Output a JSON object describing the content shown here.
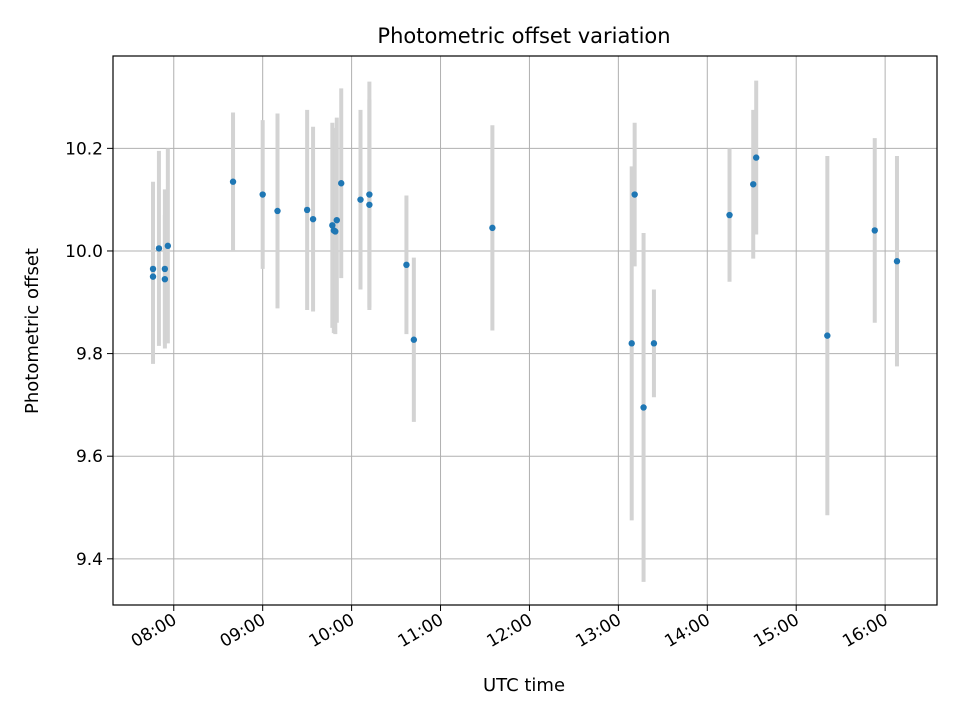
{
  "chart_data": {
    "type": "scatter",
    "title": "Photometric offset variation",
    "xlabel": "UTC time",
    "ylabel": "Photometric offset",
    "x_ticks": [
      "08:00",
      "09:00",
      "10:00",
      "11:00",
      "12:00",
      "13:00",
      "14:00",
      "15:00",
      "16:00"
    ],
    "y_ticks": [
      "9.4",
      "9.6",
      "9.8",
      "10.0",
      "10.2"
    ],
    "grid": true,
    "colors": {
      "point": "#1f77b4",
      "errorbar": "#d3d3d3",
      "grid": "#b0b0b0",
      "axis": "#000000"
    },
    "x_range": [
      "07:19",
      "16:35"
    ],
    "ylim": [
      9.31,
      10.38
    ],
    "points": [
      {
        "t": "07:46",
        "y": 9.95,
        "err": 0.17
      },
      {
        "t": "07:46",
        "y": 9.965,
        "err": 0.17
      },
      {
        "t": "07:50",
        "y": 10.005,
        "err": 0.19
      },
      {
        "t": "07:54",
        "y": 9.965,
        "err": 0.155
      },
      {
        "t": "07:54",
        "y": 9.945,
        "err": 0.125
      },
      {
        "t": "07:56",
        "y": 10.01,
        "err": 0.19
      },
      {
        "t": "08:40",
        "y": 10.135,
        "err": 0.135
      },
      {
        "t": "09:00",
        "y": 10.11,
        "err": 0.145
      },
      {
        "t": "09:10",
        "y": 10.078,
        "err": 0.19
      },
      {
        "t": "09:30",
        "y": 10.08,
        "err": 0.195
      },
      {
        "t": "09:34",
        "y": 10.062,
        "err": 0.18
      },
      {
        "t": "09:47",
        "y": 10.05,
        "err": 0.2
      },
      {
        "t": "09:48",
        "y": 10.04,
        "err": 0.2
      },
      {
        "t": "09:49",
        "y": 10.038,
        "err": 0.2
      },
      {
        "t": "09:50",
        "y": 10.06,
        "err": 0.2
      },
      {
        "t": "09:53",
        "y": 10.132,
        "err": 0.185
      },
      {
        "t": "10:06",
        "y": 10.1,
        "err": 0.175
      },
      {
        "t": "10:12",
        "y": 10.11,
        "err": 0.22
      },
      {
        "t": "10:12",
        "y": 10.09,
        "err": 0.205
      },
      {
        "t": "10:37",
        "y": 9.973,
        "err": 0.135
      },
      {
        "t": "10:42",
        "y": 9.827,
        "err": 0.16
      },
      {
        "t": "11:35",
        "y": 10.045,
        "err": 0.2
      },
      {
        "t": "13:09",
        "y": 9.82,
        "err": 0.345
      },
      {
        "t": "13:11",
        "y": 10.11,
        "err": 0.14
      },
      {
        "t": "13:17",
        "y": 9.695,
        "err": 0.34
      },
      {
        "t": "13:24",
        "y": 9.82,
        "err": 0.105
      },
      {
        "t": "14:15",
        "y": 10.07,
        "err": 0.13
      },
      {
        "t": "14:31",
        "y": 10.13,
        "err": 0.145
      },
      {
        "t": "14:33",
        "y": 10.182,
        "err": 0.15
      },
      {
        "t": "15:21",
        "y": 9.835,
        "err": 0.35
      },
      {
        "t": "15:53",
        "y": 10.04,
        "err": 0.18
      },
      {
        "t": "16:08",
        "y": 9.98,
        "err": 0.205
      }
    ]
  }
}
